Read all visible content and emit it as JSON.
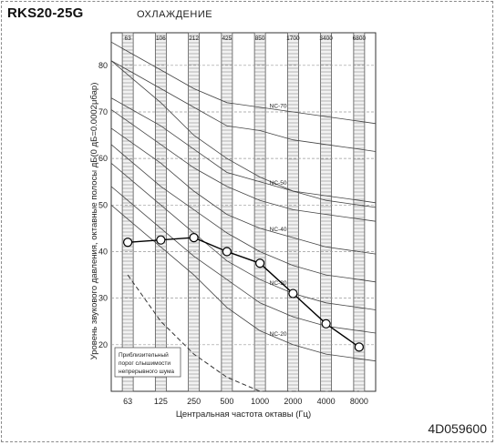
{
  "header": {
    "model": "RKS20-25G",
    "mode": "ОХЛАЖДЕНИЕ"
  },
  "footer": {
    "doc_code": "4D059600"
  },
  "chart_data": {
    "type": "line",
    "title": "",
    "xlabel": "Центральная частота октавы (Гц)",
    "ylabel": "Уровень звукового давления, октавные полосы дБ(0 дБ=0.0002μбар)",
    "x_categories": [
      "63",
      "125",
      "250",
      "500",
      "1000",
      "2000",
      "4000",
      "8000"
    ],
    "top_band_labels": [
      "63",
      "106",
      "212",
      "425",
      "850",
      "1700",
      "3400",
      "6800"
    ],
    "yticks": [
      20,
      30,
      40,
      50,
      60,
      70,
      80
    ],
    "ylim": [
      10,
      87
    ],
    "grid": true,
    "series": [
      {
        "values": [
          42,
          42.5,
          43,
          40,
          37.5,
          31,
          24.5,
          19.5
        ]
      }
    ],
    "nc_curves": [
      {
        "label": "",
        "values": [
          78,
          72,
          65,
          60,
          56,
          53,
          51,
          50
        ]
      },
      {
        "label": "NC-70",
        "values": [
          83,
          79,
          75,
          72,
          71,
          70,
          69,
          68
        ]
      },
      {
        "label": "",
        "values": [
          79,
          75,
          71,
          67,
          66,
          64,
          63,
          62
        ]
      },
      {
        "label": "NC-50",
        "values": [
          71,
          67,
          62,
          57,
          55,
          53,
          52,
          51
        ]
      },
      {
        "label": "",
        "values": [
          68,
          63,
          58,
          54,
          51,
          49,
          48,
          47
        ]
      },
      {
        "label": "NC-40",
        "values": [
          64,
          59,
          53,
          48,
          45,
          43,
          41,
          40
        ]
      },
      {
        "label": "",
        "values": [
          60,
          54,
          49,
          44,
          40,
          37,
          35,
          34
        ]
      },
      {
        "label": "NC-30",
        "values": [
          56,
          50,
          44,
          38,
          34,
          31,
          29,
          28
        ]
      },
      {
        "label": "",
        "values": [
          51,
          45,
          39,
          34,
          29,
          26,
          24,
          23
        ]
      },
      {
        "label": "NC-20",
        "values": [
          47,
          41,
          35,
          28,
          23,
          20,
          18,
          17
        ]
      }
    ],
    "threshold": {
      "label_lines": [
        "Приблизительный",
        "порог слышимости",
        "непрерывного шума"
      ],
      "values": [
        35,
        25,
        18,
        13,
        10,
        10,
        10,
        10
      ]
    }
  }
}
